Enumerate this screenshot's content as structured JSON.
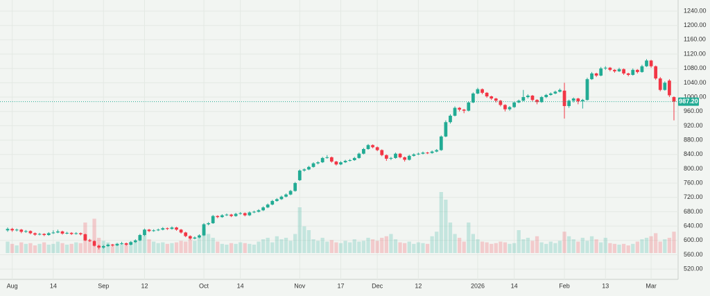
{
  "chart_data": {
    "type": "candlestick",
    "ylim": [
      497,
      1271
    ],
    "yticks": [
      {
        "value": 520,
        "label": "520.00"
      },
      {
        "value": 560,
        "label": "560.00"
      },
      {
        "value": 600,
        "label": "600.00"
      },
      {
        "value": 640,
        "label": "640.00"
      },
      {
        "value": 680,
        "label": "680.00"
      },
      {
        "value": 720,
        "label": "720.00"
      },
      {
        "value": 760,
        "label": "760.00"
      },
      {
        "value": 800,
        "label": "800.00"
      },
      {
        "value": 840,
        "label": "840.00"
      },
      {
        "value": 880,
        "label": "880.00"
      },
      {
        "value": 920,
        "label": "920.00"
      },
      {
        "value": 960,
        "label": "960.00"
      },
      {
        "value": 1000,
        "label": "1000.00"
      },
      {
        "value": 1040,
        "label": "1040.00"
      },
      {
        "value": 1080,
        "label": "1080.00"
      },
      {
        "value": 1120,
        "label": "1120.00"
      },
      {
        "value": 1160,
        "label": "1160.00"
      },
      {
        "value": 1200,
        "label": "1200.00"
      },
      {
        "value": 1240,
        "label": "1240.00"
      }
    ],
    "last_price": {
      "value": 987.2,
      "label": "987.20"
    },
    "up_color": "#22ab94",
    "down_color": "#f23645",
    "categories": [
      null,
      "Aug",
      null,
      null,
      null,
      null,
      null,
      null,
      null,
      null,
      "14",
      null,
      null,
      null,
      null,
      null,
      null,
      null,
      null,
      null,
      null,
      "Sep",
      null,
      null,
      null,
      null,
      null,
      null,
      null,
      null,
      "12",
      null,
      null,
      null,
      null,
      null,
      null,
      null,
      null,
      null,
      null,
      null,
      null,
      "Oct",
      null,
      null,
      null,
      null,
      null,
      null,
      null,
      "14",
      null,
      null,
      null,
      null,
      null,
      null,
      null,
      null,
      null,
      null,
      null,
      null,
      "Nov",
      null,
      null,
      null,
      null,
      null,
      null,
      null,
      null,
      "17",
      null,
      null,
      null,
      null,
      null,
      null,
      null,
      "Dec",
      null,
      null,
      null,
      null,
      null,
      null,
      null,
      null,
      "12",
      null,
      null,
      null,
      null,
      null,
      null,
      null,
      null,
      null,
      null,
      null,
      null,
      "2026",
      null,
      null,
      null,
      null,
      null,
      null,
      null,
      "14",
      null,
      null,
      null,
      null,
      null,
      null,
      null,
      null,
      null,
      null,
      "Feb",
      null,
      null,
      null,
      null,
      null,
      null,
      null,
      null,
      "13",
      null,
      null,
      null,
      null,
      null,
      null,
      null,
      null,
      null,
      "Mar",
      null,
      null,
      null,
      null,
      null
    ],
    "ohlc": [
      [
        628,
        636,
        624,
        632
      ],
      [
        632,
        635,
        624,
        628
      ],
      [
        628,
        633,
        625,
        630
      ],
      [
        630,
        632,
        620,
        624
      ],
      [
        624,
        629,
        621,
        626
      ],
      [
        626,
        628,
        617,
        620
      ],
      [
        620,
        622,
        613,
        616
      ],
      [
        616,
        621,
        614,
        618
      ],
      [
        618,
        620,
        612,
        615
      ],
      [
        615,
        623,
        613,
        620
      ],
      [
        620,
        628,
        618,
        622
      ],
      [
        622,
        630,
        620,
        625
      ],
      [
        625,
        627,
        616,
        619
      ],
      [
        619,
        624,
        617,
        621
      ],
      [
        621,
        623,
        615,
        618
      ],
      [
        618,
        623,
        616,
        620
      ],
      [
        620,
        622,
        614,
        617
      ],
      [
        617,
        619,
        598,
        600
      ],
      [
        600,
        604,
        596,
        598
      ],
      [
        598,
        600,
        583,
        585
      ],
      [
        585,
        588,
        575,
        580
      ],
      [
        580,
        587,
        577,
        584
      ],
      [
        584,
        591,
        582,
        588
      ],
      [
        588,
        590,
        583,
        586
      ],
      [
        586,
        593,
        584,
        590
      ],
      [
        590,
        596,
        588,
        592
      ],
      [
        592,
        594,
        585,
        588
      ],
      [
        588,
        598,
        586,
        595
      ],
      [
        595,
        603,
        593,
        600
      ],
      [
        600,
        618,
        598,
        615
      ],
      [
        615,
        633,
        612,
        630
      ],
      [
        630,
        632,
        623,
        626
      ],
      [
        626,
        631,
        624,
        628
      ],
      [
        628,
        633,
        626,
        630
      ],
      [
        630,
        637,
        628,
        634
      ],
      [
        634,
        636,
        629,
        632
      ],
      [
        632,
        639,
        630,
        636
      ],
      [
        636,
        638,
        627,
        630
      ],
      [
        630,
        632,
        619,
        622
      ],
      [
        622,
        624,
        609,
        612
      ],
      [
        612,
        614,
        602,
        605
      ],
      [
        605,
        611,
        603,
        608
      ],
      [
        608,
        617,
        606,
        614
      ],
      [
        614,
        648,
        612,
        645
      ],
      [
        645,
        651,
        642,
        648
      ],
      [
        648,
        671,
        646,
        668
      ],
      [
        668,
        670,
        662,
        665
      ],
      [
        665,
        673,
        663,
        670
      ],
      [
        670,
        675,
        668,
        672
      ],
      [
        672,
        674,
        665,
        668
      ],
      [
        668,
        677,
        666,
        674
      ],
      [
        674,
        679,
        672,
        676
      ],
      [
        676,
        678,
        667,
        670
      ],
      [
        670,
        681,
        668,
        678
      ],
      [
        678,
        683,
        676,
        680
      ],
      [
        680,
        687,
        678,
        684
      ],
      [
        684,
        695,
        682,
        692
      ],
      [
        692,
        703,
        690,
        700
      ],
      [
        700,
        713,
        698,
        710
      ],
      [
        710,
        718,
        708,
        715
      ],
      [
        715,
        725,
        713,
        722
      ],
      [
        722,
        731,
        720,
        728
      ],
      [
        728,
        741,
        726,
        738
      ],
      [
        738,
        763,
        736,
        760
      ],
      [
        768,
        798,
        766,
        795
      ],
      [
        795,
        801,
        792,
        798
      ],
      [
        798,
        808,
        796,
        805
      ],
      [
        805,
        818,
        803,
        815
      ],
      [
        815,
        821,
        812,
        818
      ],
      [
        818,
        833,
        816,
        830
      ],
      [
        830,
        838,
        828,
        832
      ],
      [
        832,
        834,
        817,
        820
      ],
      [
        820,
        822,
        809,
        812
      ],
      [
        812,
        821,
        810,
        818
      ],
      [
        818,
        825,
        816,
        822
      ],
      [
        822,
        827,
        820,
        824
      ],
      [
        824,
        833,
        822,
        830
      ],
      [
        830,
        845,
        828,
        842
      ],
      [
        842,
        858,
        840,
        855
      ],
      [
        855,
        869,
        853,
        866
      ],
      [
        866,
        868,
        857,
        860
      ],
      [
        860,
        862,
        849,
        852
      ],
      [
        852,
        854,
        835,
        838
      ],
      [
        838,
        840,
        822,
        828
      ],
      [
        828,
        833,
        824,
        830
      ],
      [
        830,
        845,
        828,
        842
      ],
      [
        842,
        844,
        829,
        832
      ],
      [
        832,
        834,
        820,
        825
      ],
      [
        825,
        839,
        823,
        836
      ],
      [
        836,
        843,
        834,
        840
      ],
      [
        840,
        845,
        838,
        842
      ],
      [
        842,
        848,
        840,
        845
      ],
      [
        845,
        847,
        841,
        844
      ],
      [
        844,
        851,
        842,
        848
      ],
      [
        848,
        855,
        846,
        852
      ],
      [
        852,
        893,
        850,
        890
      ],
      [
        890,
        935,
        888,
        930
      ],
      [
        930,
        952,
        926,
        948
      ],
      [
        948,
        974,
        946,
        970
      ],
      [
        970,
        972,
        960,
        965
      ],
      [
        965,
        967,
        955,
        962
      ],
      [
        962,
        988,
        960,
        985
      ],
      [
        985,
        1013,
        983,
        1010
      ],
      [
        1010,
        1026,
        1008,
        1022
      ],
      [
        1022,
        1024,
        1008,
        1012
      ],
      [
        1012,
        1014,
        998,
        1002
      ],
      [
        1002,
        1004,
        992,
        996
      ],
      [
        996,
        998,
        985,
        990
      ],
      [
        990,
        992,
        974,
        978
      ],
      [
        978,
        980,
        960,
        966
      ],
      [
        966,
        975,
        962,
        972
      ],
      [
        972,
        988,
        970,
        985
      ],
      [
        985,
        993,
        983,
        990
      ],
      [
        990,
        1020,
        988,
        1000
      ],
      [
        1000,
        1008,
        996,
        1004
      ],
      [
        1004,
        1006,
        988,
        992
      ],
      [
        992,
        994,
        980,
        986
      ],
      [
        986,
        1003,
        984,
        1000
      ],
      [
        1000,
        1009,
        997,
        1006
      ],
      [
        1006,
        1013,
        1004,
        1010
      ],
      [
        1010,
        1018,
        1008,
        1015
      ],
      [
        1015,
        1024,
        1013,
        1020
      ],
      [
        1018,
        1040,
        940,
        975
      ],
      [
        975,
        993,
        970,
        990
      ],
      [
        990,
        999,
        985,
        996
      ],
      [
        996,
        998,
        980,
        988
      ],
      [
        988,
        995,
        968,
        992
      ],
      [
        992,
        1054,
        990,
        1050
      ],
      [
        1050,
        1070,
        1048,
        1066
      ],
      [
        1066,
        1068,
        1056,
        1060
      ],
      [
        1060,
        1084,
        1058,
        1080
      ],
      [
        1080,
        1086,
        1076,
        1082
      ],
      [
        1082,
        1084,
        1072,
        1076
      ],
      [
        1076,
        1078,
        1068,
        1072
      ],
      [
        1072,
        1082,
        1070,
        1078
      ],
      [
        1078,
        1080,
        1062,
        1066
      ],
      [
        1066,
        1068,
        1058,
        1062
      ],
      [
        1062,
        1080,
        1060,
        1076
      ],
      [
        1076,
        1078,
        1066,
        1070
      ],
      [
        1070,
        1090,
        1068,
        1086
      ],
      [
        1086,
        1106,
        1084,
        1102
      ],
      [
        1102,
        1104,
        1082,
        1086
      ],
      [
        1086,
        1088,
        1048,
        1052
      ],
      [
        1052,
        1056,
        1016,
        1020
      ],
      [
        1020,
        1044,
        1018,
        1040
      ],
      [
        1046,
        1050,
        1000,
        1005
      ],
      [
        1000,
        1002,
        935,
        987.2
      ]
    ],
    "volume": [
      15,
      12,
      10,
      14,
      12,
      13,
      10,
      12,
      14,
      11,
      12,
      15,
      13,
      11,
      12,
      14,
      13,
      40,
      18,
      45,
      20,
      16,
      14,
      12,
      13,
      12,
      11,
      15,
      14,
      22,
      25,
      18,
      15,
      13,
      14,
      12,
      13,
      14,
      16,
      15,
      18,
      16,
      20,
      32,
      25,
      20,
      15,
      12,
      11,
      13,
      12,
      14,
      13,
      12,
      11,
      15,
      18,
      20,
      14,
      22,
      18,
      20,
      16,
      25,
      60,
      35,
      30,
      18,
      16,
      20,
      15,
      17,
      14,
      13,
      16,
      14,
      18,
      15,
      16,
      20,
      18,
      16,
      20,
      22,
      25,
      18,
      14,
      13,
      15,
      12,
      14,
      13,
      12,
      22,
      28,
      80,
      70,
      40,
      25,
      20,
      15,
      40,
      25,
      18,
      15,
      14,
      12,
      13,
      15,
      14,
      12,
      13,
      30,
      18,
      20,
      16,
      22,
      14,
      12,
      15,
      13,
      16,
      28,
      22,
      18,
      15,
      20,
      16,
      22,
      18,
      14,
      20,
      13,
      12,
      11,
      12,
      10,
      12,
      15,
      18,
      20,
      22,
      26,
      15,
      18,
      20,
      28
    ]
  }
}
